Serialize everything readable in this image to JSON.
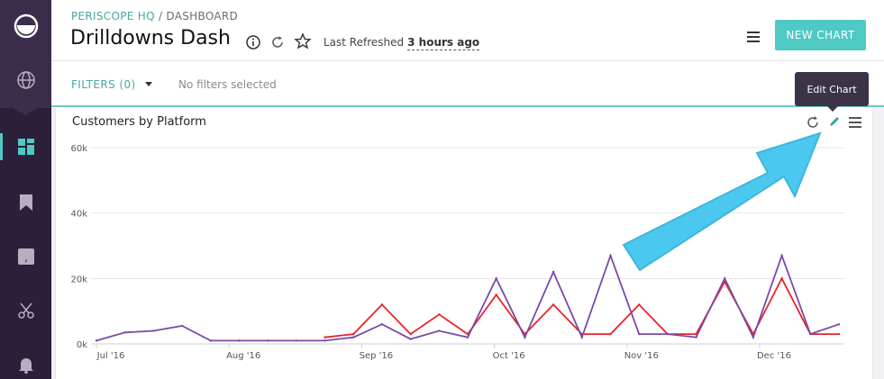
{
  "breadcrumb": {
    "home": "PERISCOPE HQ",
    "separator": " / ",
    "section": "DASHBOARD"
  },
  "dashboard": {
    "title": "Drilldowns Dash",
    "refresh_label": "Last Refreshed",
    "refresh_value": "3 hours ago",
    "new_chart_label": "NEW CHART"
  },
  "filters": {
    "label": "FILTERS (0)",
    "empty_text": "No filters selected"
  },
  "tooltip": {
    "text": "Edit Chart"
  },
  "sidebar": {
    "items": [
      {
        "icon": "periscope-logo-icon"
      },
      {
        "icon": "globe-icon"
      },
      {
        "icon": "dashboard-icon",
        "active": true
      },
      {
        "icon": "bookmark-icon"
      },
      {
        "icon": "chat-quote-icon"
      },
      {
        "icon": "scissors-icon"
      },
      {
        "icon": "bell-icon"
      }
    ]
  },
  "colors": {
    "accent": "#4fc9c3",
    "sidebar": "#2b1f3a",
    "series_red": "#e8232b",
    "series_purple": "#7b4aa7",
    "arrow": "#4bc8f0"
  },
  "chart_data": {
    "type": "line",
    "title": "Customers by Platform",
    "xlabel": "",
    "ylabel": "",
    "ylim": [
      0,
      60000
    ],
    "y_ticks": [
      "0k",
      "20k",
      "40k",
      "60k"
    ],
    "x_ticks": [
      "Jul '16",
      "Aug '16",
      "Sep '16",
      "Oct '16",
      "Nov '16",
      "Dec '16"
    ],
    "x": [
      "2016-06-27",
      "2016-07-04",
      "2016-07-11",
      "2016-07-18",
      "2016-07-25",
      "2016-08-01",
      "2016-08-08",
      "2016-08-15",
      "2016-08-22",
      "2016-08-29",
      "2016-09-05",
      "2016-09-12",
      "2016-09-19",
      "2016-09-26",
      "2016-10-03",
      "2016-10-10",
      "2016-10-17",
      "2016-10-24",
      "2016-10-31",
      "2016-11-07",
      "2016-11-14",
      "2016-11-21",
      "2016-11-28",
      "2016-12-05",
      "2016-12-12",
      "2016-12-19",
      "2016-12-26"
    ],
    "series": [
      {
        "values": [
          null,
          null,
          null,
          null,
          null,
          null,
          null,
          null,
          2000,
          3000,
          12000,
          3000,
          9000,
          3000,
          15000,
          3000,
          12000,
          3000,
          3000,
          12000,
          3000,
          3000,
          19000,
          3000,
          20000,
          3000,
          3000
        ]
      },
      {
        "values": [
          1000,
          3500,
          4000,
          5500,
          1000,
          1000,
          1000,
          1000,
          1000,
          2000,
          6000,
          1500,
          4000,
          2000,
          20000,
          2000,
          22000,
          2000,
          27000,
          3000,
          3000,
          2000,
          20000,
          2000,
          27000,
          3000,
          6000
        ]
      }
    ]
  }
}
